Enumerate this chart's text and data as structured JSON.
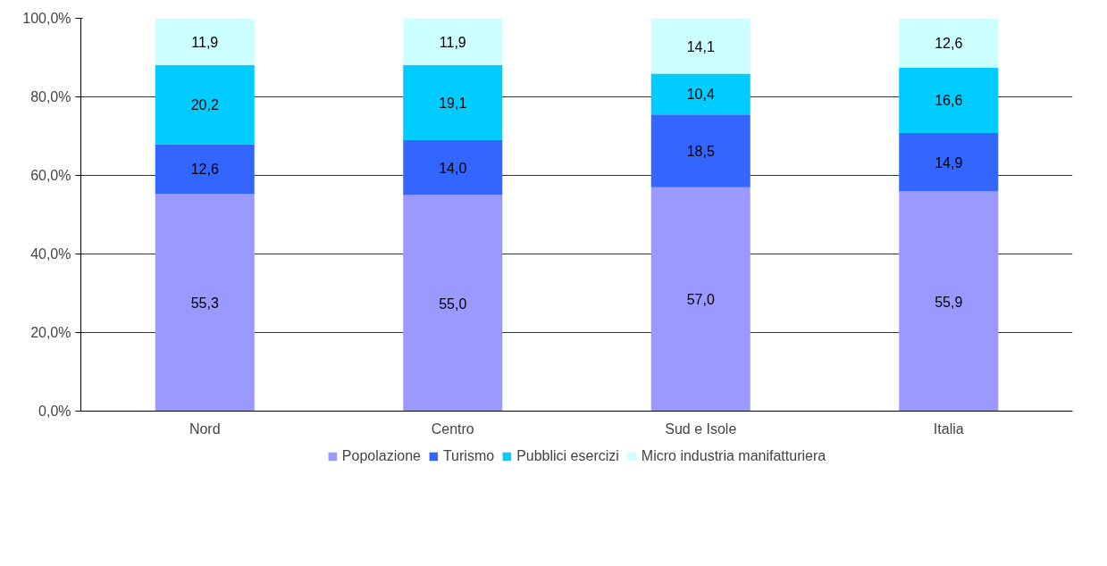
{
  "chart_data": {
    "type": "bar",
    "stacked": true,
    "categories": [
      "Nord",
      "Centro",
      "Sud e Isole",
      "Italia"
    ],
    "series": [
      {
        "name": "Popolazione",
        "color": "#9999ff",
        "values": [
          55.3,
          55.0,
          57.0,
          55.9
        ],
        "value_labels": [
          "55,3",
          "55,0",
          "57,0",
          "55,9"
        ]
      },
      {
        "name": "Turismo",
        "color": "#3366ff",
        "values": [
          12.6,
          14.0,
          18.5,
          14.9
        ],
        "value_labels": [
          "12,6",
          "14,0",
          "18,5",
          "14,9"
        ]
      },
      {
        "name": "Pubblici esercizi",
        "color": "#00ccff",
        "values": [
          20.2,
          19.1,
          10.4,
          16.6
        ],
        "value_labels": [
          "20,2",
          "19,1",
          "10,4",
          "16,6"
        ]
      },
      {
        "name": "Micro industria manifatturiera",
        "color": "#ccffff",
        "values": [
          11.9,
          11.9,
          14.1,
          12.6
        ],
        "value_labels": [
          "11,9",
          "11,9",
          "14,1",
          "12,6"
        ]
      }
    ],
    "ylim": [
      0,
      100
    ],
    "yticks": [
      {
        "value": 0,
        "label": "0,0%"
      },
      {
        "value": 20,
        "label": "20,0%"
      },
      {
        "value": 40,
        "label": "40,0%"
      },
      {
        "value": 60,
        "label": "60,0%"
      },
      {
        "value": 80,
        "label": "80,0%"
      },
      {
        "value": 100,
        "label": "100,0%"
      }
    ],
    "grid": "y",
    "legend": "bottom"
  }
}
